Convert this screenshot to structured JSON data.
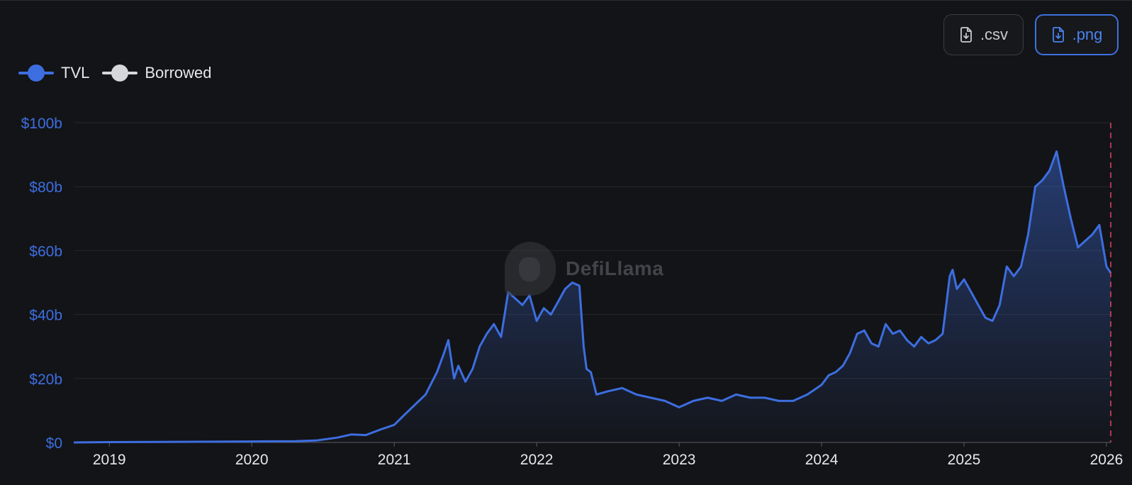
{
  "toolbar": {
    "csv_label": ".csv",
    "png_label": ".png"
  },
  "legend": {
    "tvl_label": "TVL",
    "borrowed_label": "Borrowed",
    "tvl_color": "#3d6ee0",
    "borrowed_color": "#d5d7db"
  },
  "watermark": {
    "text": "DefiLlama"
  },
  "chart_data": {
    "type": "area",
    "title": "",
    "xlabel": "",
    "ylabel": "",
    "ylim": [
      0,
      100
    ],
    "y_ticks": [
      0,
      20,
      40,
      60,
      80,
      100
    ],
    "y_tick_labels": [
      "$0",
      "$20b",
      "$40b",
      "$60b",
      "$80b",
      "$100b"
    ],
    "xlim": [
      2018.75,
      2026.03
    ],
    "x_ticks": [
      2019,
      2020,
      2021,
      2022,
      2023,
      2024,
      2025,
      2026
    ],
    "x_tick_labels": [
      "2019",
      "2020",
      "2021",
      "2022",
      "2023",
      "2024",
      "2025",
      "2026"
    ],
    "grid": true,
    "legend_position": "top-left",
    "series": [
      {
        "name": "TVL",
        "color": "#3d6ee0",
        "x": [
          2018.75,
          2019.0,
          2019.5,
          2020.0,
          2020.3,
          2020.45,
          2020.6,
          2020.7,
          2020.8,
          2020.9,
          2021.0,
          2021.08,
          2021.15,
          2021.22,
          2021.3,
          2021.35,
          2021.38,
          2021.42,
          2021.45,
          2021.5,
          2021.55,
          2021.6,
          2021.65,
          2021.7,
          2021.75,
          2021.8,
          2021.85,
          2021.9,
          2021.95,
          2022.0,
          2022.05,
          2022.1,
          2022.15,
          2022.2,
          2022.25,
          2022.3,
          2022.33,
          2022.35,
          2022.38,
          2022.42,
          2022.5,
          2022.6,
          2022.7,
          2022.8,
          2022.9,
          2023.0,
          2023.1,
          2023.2,
          2023.3,
          2023.4,
          2023.5,
          2023.6,
          2023.7,
          2023.8,
          2023.9,
          2024.0,
          2024.05,
          2024.1,
          2024.15,
          2024.2,
          2024.25,
          2024.3,
          2024.35,
          2024.4,
          2024.45,
          2024.5,
          2024.55,
          2024.6,
          2024.65,
          2024.7,
          2024.75,
          2024.8,
          2024.85,
          2024.9,
          2024.92,
          2024.95,
          2025.0,
          2025.05,
          2025.1,
          2025.15,
          2025.2,
          2025.25,
          2025.3,
          2025.35,
          2025.4,
          2025.45,
          2025.5,
          2025.55,
          2025.6,
          2025.65,
          2025.7,
          2025.75,
          2025.8,
          2025.85,
          2025.9,
          2025.95,
          2026.0,
          2026.03
        ],
        "values": [
          0,
          0.1,
          0.2,
          0.3,
          0.4,
          0.6,
          1.5,
          2.5,
          2.3,
          4,
          5.5,
          9,
          12,
          15,
          22,
          28,
          32,
          20,
          24,
          19,
          23,
          30,
          34,
          37,
          33,
          47,
          45,
          43,
          46,
          38,
          42,
          40,
          44,
          48,
          50,
          49,
          30,
          23,
          22,
          15,
          16,
          17,
          15,
          14,
          13,
          11,
          13,
          14,
          13,
          15,
          14,
          14,
          13,
          13,
          15,
          18,
          21,
          22,
          24,
          28,
          34,
          35,
          31,
          30,
          37,
          34,
          35,
          32,
          30,
          33,
          31,
          32,
          34,
          52,
          54,
          48,
          51,
          47,
          43,
          39,
          38,
          43,
          55,
          52,
          55,
          65,
          80,
          82,
          85,
          91,
          80,
          70,
          61,
          63,
          65,
          68,
          55,
          53
        ]
      },
      {
        "name": "Borrowed",
        "color": "#d5d7db",
        "x": [],
        "values": []
      }
    ],
    "annotations": [
      {
        "type": "vertical-dashed-line",
        "x": 2026.03,
        "color": "#e04466"
      }
    ]
  }
}
